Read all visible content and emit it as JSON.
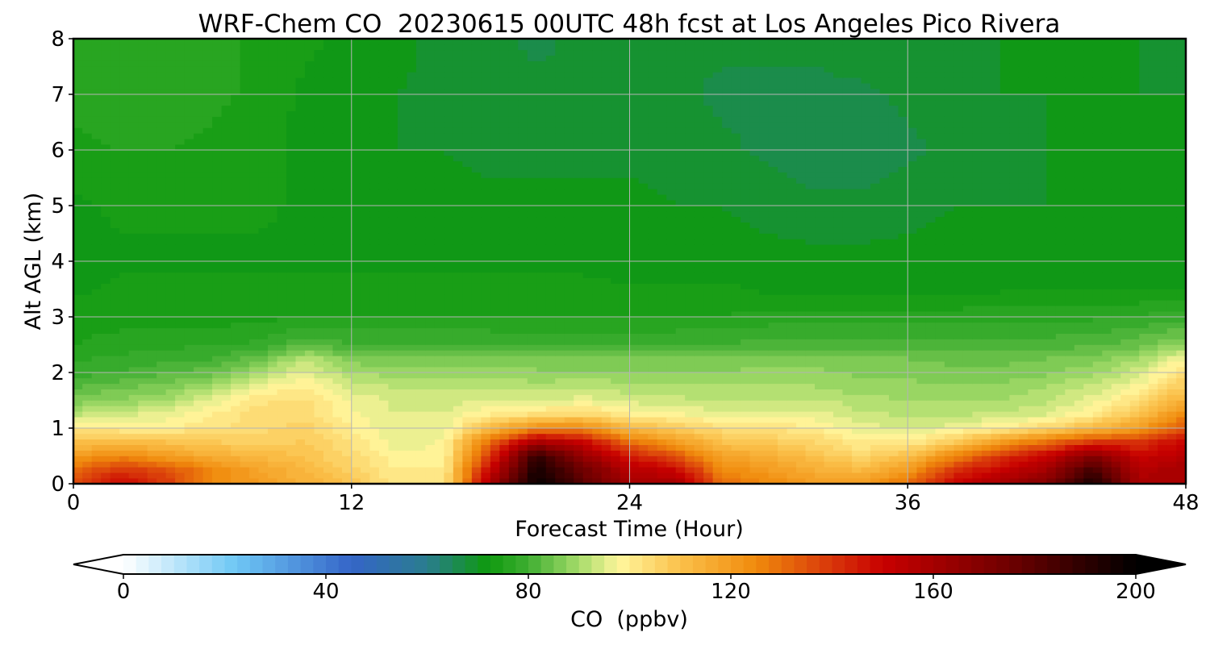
{
  "chart_data": {
    "type": "heatmap",
    "title": "WRF-Chem CO  20230615 00UTC 48h fcst at Los Angeles Pico Rivera",
    "xlabel": "Forecast Time (Hour)",
    "ylabel": "Alt AGL (km)",
    "xlim": [
      0,
      48
    ],
    "ylim": [
      0,
      8
    ],
    "xticks": [
      0,
      12,
      24,
      36,
      48
    ],
    "yticks": [
      0,
      1,
      2,
      3,
      4,
      5,
      6,
      7,
      8
    ],
    "grid": true,
    "x": [
      0,
      2,
      4,
      6,
      8,
      10,
      12,
      14,
      16,
      18,
      20,
      22,
      24,
      26,
      28,
      30,
      32,
      34,
      36,
      38,
      40,
      42,
      44,
      46,
      48
    ],
    "y": [
      0,
      0.25,
      0.5,
      0.75,
      1,
      1.25,
      1.5,
      1.75,
      2,
      2.25,
      2.5,
      3,
      3.5,
      4,
      5,
      6,
      7,
      8
    ],
    "z": [
      [
        135,
        150,
        140,
        125,
        120,
        115,
        110,
        100,
        100,
        160,
        200,
        180,
        160,
        160,
        130,
        125,
        120,
        120,
        130,
        150,
        160,
        170,
        195,
        160,
        160
      ],
      [
        130,
        140,
        135,
        125,
        118,
        112,
        106,
        100,
        100,
        150,
        195,
        175,
        155,
        150,
        125,
        120,
        115,
        112,
        120,
        140,
        150,
        160,
        185,
        155,
        160
      ],
      [
        120,
        125,
        120,
        115,
        112,
        110,
        104,
        98,
        98,
        140,
        190,
        165,
        145,
        135,
        118,
        115,
        110,
        105,
        110,
        125,
        140,
        150,
        170,
        150,
        155
      ],
      [
        110,
        112,
        110,
        108,
        106,
        108,
        102,
        96,
        98,
        130,
        160,
        150,
        130,
        120,
        110,
        108,
        105,
        100,
        100,
        108,
        120,
        130,
        140,
        140,
        150
      ],
      [
        102,
        100,
        100,
        102,
        104,
        106,
        100,
        95,
        96,
        112,
        125,
        125,
        112,
        108,
        103,
        102,
        100,
        96,
        95,
        96,
        100,
        105,
        112,
        120,
        135
      ],
      [
        92,
        94,
        96,
        100,
        104,
        104,
        98,
        95,
        95,
        100,
        103,
        105,
        100,
        98,
        96,
        96,
        96,
        93,
        92,
        92,
        93,
        95,
        100,
        110,
        125
      ],
      [
        86,
        88,
        90,
        96,
        102,
        103,
        97,
        94,
        94,
        95,
        95,
        96,
        94,
        93,
        92,
        92,
        93,
        91,
        90,
        90,
        90,
        92,
        96,
        103,
        115
      ],
      [
        82,
        84,
        86,
        90,
        97,
        100,
        94,
        92,
        92,
        92,
        91,
        92,
        91,
        91,
        90,
        90,
        90,
        88,
        88,
        88,
        88,
        90,
        93,
        98,
        108
      ],
      [
        79,
        80,
        82,
        84,
        90,
        96,
        90,
        89,
        89,
        89,
        88,
        88,
        88,
        88,
        88,
        88,
        88,
        87,
        87,
        86,
        86,
        87,
        89,
        94,
        104
      ],
      [
        77,
        78,
        79,
        80,
        84,
        92,
        86,
        86,
        86,
        86,
        85,
        85,
        85,
        85,
        85,
        86,
        86,
        85,
        85,
        84,
        84,
        85,
        86,
        90,
        98
      ],
      [
        75,
        76,
        77,
        77,
        78,
        82,
        80,
        80,
        80,
        80,
        79,
        79,
        79,
        80,
        80,
        81,
        81,
        81,
        81,
        81,
        81,
        81,
        82,
        84,
        88
      ],
      [
        74,
        74,
        74,
        74,
        74,
        75,
        75,
        75,
        75,
        75,
        75,
        75,
        75,
        75,
        75,
        76,
        76,
        76,
        76,
        76,
        77,
        77,
        77,
        78,
        79
      ],
      [
        72,
        73,
        73,
        73,
        73,
        73,
        73,
        73,
        73,
        73,
        73,
        73,
        73,
        73,
        73,
        72,
        72,
        72,
        72,
        72,
        72,
        72,
        72,
        72,
        72
      ],
      [
        70,
        72,
        72,
        72,
        72,
        72,
        72,
        72,
        72,
        72,
        72,
        72,
        71,
        71,
        71,
        71,
        71,
        71,
        71,
        71,
        71,
        71,
        71,
        71,
        71
      ],
      [
        72,
        73,
        73,
        73,
        73,
        72,
        72,
        72,
        71,
        71,
        71,
        71,
        71,
        70,
        70,
        69,
        68,
        68,
        69,
        70,
        70,
        70,
        70,
        70,
        70
      ],
      [
        74,
        75,
        75,
        74,
        73,
        72,
        71,
        70,
        70,
        69,
        69,
        69,
        69,
        69,
        68,
        67,
        66,
        66,
        67,
        68,
        69,
        70,
        70,
        70,
        70
      ],
      [
        76,
        77,
        77,
        76,
        74,
        72,
        71,
        70,
        69,
        69,
        68,
        68,
        68,
        68,
        67,
        67,
        67,
        67,
        68,
        69,
        70,
        70,
        70,
        70,
        70
      ],
      [
        76,
        77,
        77,
        76,
        74,
        73,
        72,
        71,
        69,
        68,
        67,
        68,
        68,
        68,
        68,
        68,
        68,
        69,
        70,
        70,
        70,
        70,
        70,
        70,
        68
      ]
    ],
    "colorbar": {
      "label": "CO  (ppbv)",
      "ticks": [
        0,
        40,
        80,
        120,
        160,
        200
      ],
      "range": [
        0,
        200
      ],
      "step": 2.5,
      "extend": "both",
      "stops": [
        {
          "v": 0,
          "c": "#ffffff"
        },
        {
          "v": 22,
          "c": "#6fc8f5"
        },
        {
          "v": 45,
          "c": "#3565c8"
        },
        {
          "v": 60,
          "c": "#2a7d8e"
        },
        {
          "v": 72,
          "c": "#0e9a0e"
        },
        {
          "v": 80,
          "c": "#3fae32"
        },
        {
          "v": 90,
          "c": "#a6dc6a"
        },
        {
          "v": 98,
          "c": "#fff69c"
        },
        {
          "v": 110,
          "c": "#fbc04a"
        },
        {
          "v": 125,
          "c": "#f08a0c"
        },
        {
          "v": 140,
          "c": "#d8360a"
        },
        {
          "v": 150,
          "c": "#c80000"
        },
        {
          "v": 175,
          "c": "#6e0000"
        },
        {
          "v": 200,
          "c": "#000000"
        }
      ]
    }
  }
}
